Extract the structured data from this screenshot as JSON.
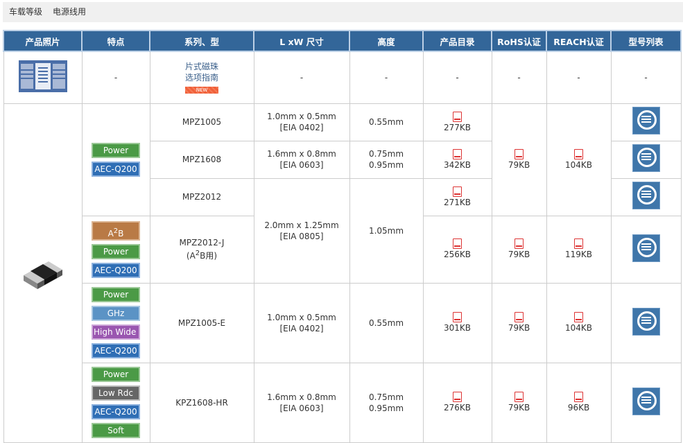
{
  "breadcrumb": [
    "车载等级",
    "电源线用"
  ],
  "headers": [
    "产品照片",
    "特点",
    "系列、型",
    "L xW 尺寸",
    "高度",
    "产品目录",
    "RoHS认证",
    "REACH认证",
    "型号列表"
  ],
  "guide_row": {
    "dash": "-",
    "guide_line1": "片式磁珠",
    "guide_line2": "选项指南",
    "new_badge": "NEW"
  },
  "tags": {
    "power": "Power",
    "aec": "AEC-Q200",
    "a2b": "A",
    "a2b_sup": "2",
    "a2b_end": "B",
    "ghz": "GHz",
    "highwide": "High Wide Z",
    "lowrdc": "Low Rdc",
    "soft": "Soft"
  },
  "colors": {
    "header": "#336699",
    "power": "#4b9a46",
    "aec": "#2f6eb5",
    "a2b": "#b97a45",
    "ghz": "#5b93c5",
    "highwide": "#9a56b0",
    "lowrdc": "#666666",
    "soft": "#4b9a46"
  },
  "rows": [
    {
      "series": "MPZ1005",
      "size1": "1.0mm x 0.5mm",
      "size2": "[EIA 0402]",
      "height1": "0.55mm",
      "height2": "",
      "catalog": "277KB"
    },
    {
      "series": "MPZ1608",
      "size1": "1.6mm x 0.8mm",
      "size2": "[EIA 0603]",
      "height1": "0.75mm",
      "height2": "0.95mm",
      "catalog": "342KB"
    },
    {
      "series": "MPZ2012",
      "size1": "2.0mm x 1.25mm",
      "size2": "[EIA 0805]",
      "height1": "1.05mm",
      "height2": "",
      "catalog": "271KB"
    },
    {
      "series": "MPZ2012-J",
      "series2a": "(A",
      "series2sup": "2",
      "series2b": "B用)",
      "catalog": "256KB",
      "rohs": "79KB",
      "reach": "119KB"
    },
    {
      "series": "MPZ1005-E",
      "size1": "1.0mm x 0.5mm",
      "size2": "[EIA 0402]",
      "height1": "0.55mm",
      "catalog": "301KB",
      "rohs": "79KB",
      "reach": "104KB"
    },
    {
      "series": "KPZ1608-HR",
      "size1": "1.6mm x 0.8mm",
      "size2": "[EIA 0603]",
      "height1": "0.75mm",
      "height2": "0.95mm",
      "catalog": "276KB",
      "rohs": "79KB",
      "reach": "96KB"
    }
  ],
  "group1": {
    "rohs": "79KB",
    "reach": "104KB"
  }
}
